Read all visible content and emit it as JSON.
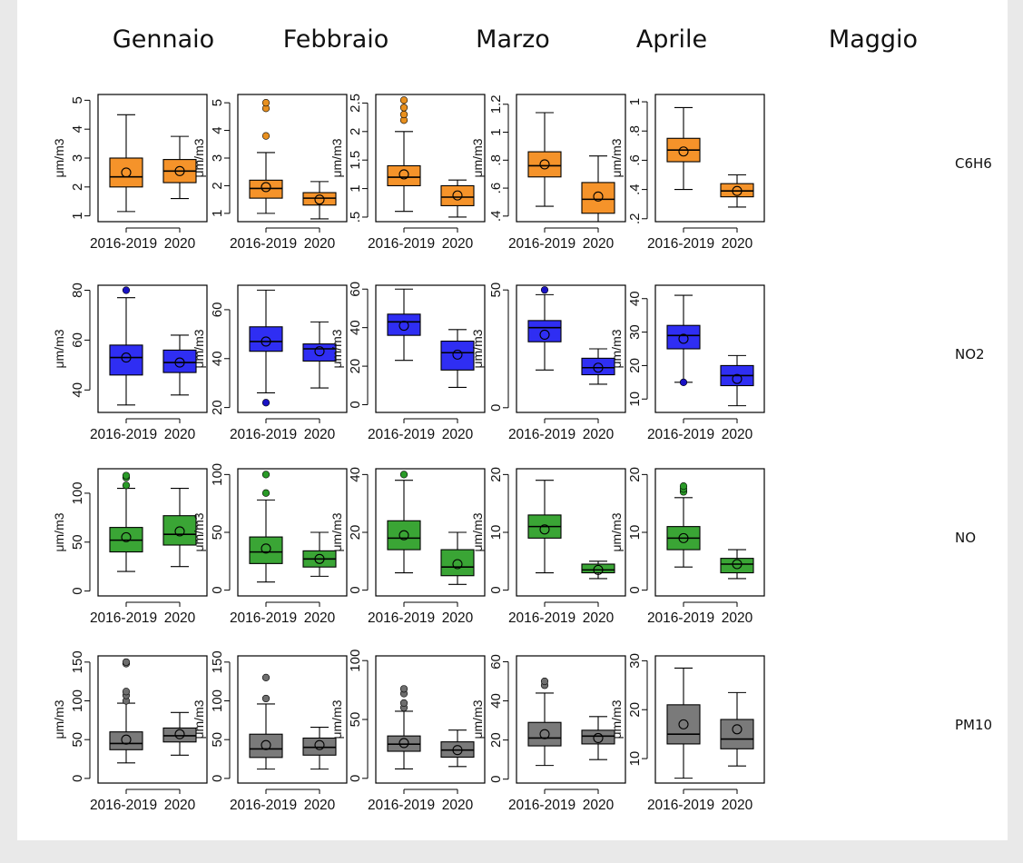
{
  "months": [
    "Gennaio",
    "Febbraio",
    "Marzo",
    "Aprile",
    "Maggio"
  ],
  "pollutants": [
    "C6H6",
    "NO2",
    "NO",
    "PM10"
  ],
  "colors": {
    "C6H6": "#f5932a",
    "NO2": "#2f2ef3",
    "NO": "#3aa535",
    "PM10": "#7a7a7a",
    "outlier_C6H6": "#e8901f",
    "outlier_NO2": "#1a12c4",
    "outlier_NO": "#2a9a28",
    "outlier_PM10": "#6e6e6e"
  },
  "chart_data": {
    "type": "boxplot",
    "categories": [
      "2016-2019",
      "2020"
    ],
    "ylabel": "μm/m3",
    "panels": [
      {
        "month": "Gennaio",
        "pollutant": "C6H6",
        "ylim": [
          0.8,
          5.2
        ],
        "yticks": [
          1,
          2,
          3,
          4,
          5
        ],
        "ytick_labels": [
          "1",
          "2",
          "3",
          "4",
          "5"
        ],
        "boxes": [
          {
            "min": 1.15,
            "q1": 2.0,
            "median": 2.35,
            "q3": 3.0,
            "max": 4.5,
            "mean": 2.5,
            "outliers": []
          },
          {
            "min": 1.6,
            "q1": 2.15,
            "median": 2.55,
            "q3": 2.95,
            "max": 3.75,
            "mean": 2.55,
            "outliers": []
          }
        ]
      },
      {
        "month": "Febbraio",
        "pollutant": "C6H6",
        "ylim": [
          0.7,
          5.3
        ],
        "yticks": [
          1,
          2,
          3,
          4,
          5
        ],
        "ytick_labels": [
          "1",
          "2",
          "3",
          "4",
          "5"
        ],
        "boxes": [
          {
            "min": 1.0,
            "q1": 1.55,
            "median": 1.9,
            "q3": 2.2,
            "max": 3.2,
            "mean": 1.95,
            "outliers": [
              3.8,
              4.8,
              5.0
            ]
          },
          {
            "min": 0.8,
            "q1": 1.3,
            "median": 1.55,
            "q3": 1.75,
            "max": 2.15,
            "mean": 1.5,
            "outliers": []
          }
        ]
      },
      {
        "month": "Marzo",
        "pollutant": "C6H6",
        "ylim": [
          0.42,
          2.65
        ],
        "yticks": [
          0.5,
          1,
          1.5,
          2,
          2.5
        ],
        "ytick_labels": [
          ".5",
          "1",
          "1.5",
          "2",
          "2.5"
        ],
        "boxes": [
          {
            "min": 0.6,
            "q1": 1.05,
            "median": 1.2,
            "q3": 1.4,
            "max": 2.0,
            "mean": 1.25,
            "outliers": [
              2.2,
              2.3,
              2.42,
              2.55
            ]
          },
          {
            "min": 0.5,
            "q1": 0.7,
            "median": 0.85,
            "q3": 1.05,
            "max": 1.15,
            "mean": 0.88,
            "outliers": []
          }
        ]
      },
      {
        "month": "Aprile",
        "pollutant": "C6H6",
        "ylim": [
          0.36,
          1.27
        ],
        "yticks": [
          0.4,
          0.6,
          0.8,
          1.0,
          1.2
        ],
        "ytick_labels": [
          ".4",
          ".6",
          ".8",
          "1",
          "1.2"
        ],
        "boxes": [
          {
            "min": 0.47,
            "q1": 0.68,
            "median": 0.76,
            "q3": 0.86,
            "max": 1.14,
            "mean": 0.77,
            "outliers": []
          },
          {
            "min": 0.36,
            "q1": 0.42,
            "median": 0.52,
            "q3": 0.64,
            "max": 0.83,
            "mean": 0.54,
            "outliers": []
          }
        ]
      },
      {
        "month": "Maggio",
        "pollutant": "C6H6",
        "ylim": [
          0.18,
          1.05
        ],
        "yticks": [
          0.2,
          0.4,
          0.6,
          0.8,
          1.0
        ],
        "ytick_labels": [
          ".2",
          ".4",
          ".6",
          ".8",
          "1"
        ],
        "boxes": [
          {
            "min": 0.4,
            "q1": 0.59,
            "median": 0.67,
            "q3": 0.75,
            "max": 0.96,
            "mean": 0.66,
            "outliers": []
          },
          {
            "min": 0.28,
            "q1": 0.35,
            "median": 0.39,
            "q3": 0.44,
            "max": 0.5,
            "mean": 0.39,
            "outliers": []
          }
        ]
      },
      {
        "month": "Gennaio",
        "pollutant": "NO2",
        "ylim": [
          31,
          82
        ],
        "yticks": [
          40,
          60,
          80
        ],
        "ytick_labels": [
          "40",
          "60",
          "80"
        ],
        "boxes": [
          {
            "min": 34,
            "q1": 46,
            "median": 53,
            "q3": 58,
            "max": 77,
            "mean": 53,
            "outliers": [
              80
            ]
          },
          {
            "min": 38,
            "q1": 47,
            "median": 51,
            "q3": 56,
            "max": 62,
            "mean": 51,
            "outliers": []
          }
        ]
      },
      {
        "month": "Febbraio",
        "pollutant": "NO2",
        "ylim": [
          18,
          70
        ],
        "yticks": [
          20,
          40,
          60
        ],
        "ytick_labels": [
          "20",
          "40",
          "60"
        ],
        "boxes": [
          {
            "min": 26,
            "q1": 43,
            "median": 47,
            "q3": 53,
            "max": 68,
            "mean": 47,
            "outliers": [
              22
            ]
          },
          {
            "min": 28,
            "q1": 39,
            "median": 44,
            "q3": 46,
            "max": 55,
            "mean": 43,
            "outliers": []
          }
        ]
      },
      {
        "month": "Marzo",
        "pollutant": "NO2",
        "ylim": [
          -4,
          62
        ],
        "yticks": [
          0,
          20,
          40,
          60
        ],
        "ytick_labels": [
          "0",
          "20",
          "40",
          "60"
        ],
        "boxes": [
          {
            "min": 23,
            "q1": 36,
            "median": 43,
            "q3": 47,
            "max": 60,
            "mean": 41,
            "outliers": []
          },
          {
            "min": 9,
            "q1": 18,
            "median": 27,
            "q3": 33,
            "max": 39,
            "mean": 26,
            "outliers": []
          }
        ]
      },
      {
        "month": "Aprile",
        "pollutant": "NO2",
        "ylim": [
          -2,
          52
        ],
        "yticks": [
          0,
          50
        ],
        "ytick_labels": [
          "0",
          "50"
        ],
        "boxes": [
          {
            "min": 16,
            "q1": 28,
            "median": 34,
            "q3": 37,
            "max": 48,
            "mean": 31,
            "outliers": [
              50
            ]
          },
          {
            "min": 10,
            "q1": 14,
            "median": 17,
            "q3": 21,
            "max": 25,
            "mean": 17,
            "outliers": []
          }
        ]
      },
      {
        "month": "Maggio",
        "pollutant": "NO2",
        "ylim": [
          6,
          44
        ],
        "yticks": [
          10,
          20,
          30,
          40
        ],
        "ytick_labels": [
          "10",
          "20",
          "30",
          "40"
        ],
        "boxes": [
          {
            "min": 15,
            "q1": 25,
            "median": 29,
            "q3": 32,
            "max": 41,
            "mean": 28,
            "outliers": [
              15
            ]
          },
          {
            "min": 8,
            "q1": 14,
            "median": 17,
            "q3": 20,
            "max": 23,
            "mean": 16,
            "outliers": []
          }
        ]
      },
      {
        "month": "Gennaio",
        "pollutant": "NO",
        "ylim": [
          -5,
          125
        ],
        "yticks": [
          0,
          50,
          100
        ],
        "ytick_labels": [
          "0",
          "50",
          "100"
        ],
        "boxes": [
          {
            "min": 20,
            "q1": 40,
            "median": 52,
            "q3": 65,
            "max": 105,
            "mean": 55,
            "outliers": [
              108,
              116,
              118
            ]
          },
          {
            "min": 25,
            "q1": 47,
            "median": 58,
            "q3": 77,
            "max": 105,
            "mean": 61,
            "outliers": []
          }
        ]
      },
      {
        "month": "Febbraio",
        "pollutant": "NO",
        "ylim": [
          -5,
          105
        ],
        "yticks": [
          0,
          50,
          100
        ],
        "ytick_labels": [
          "0",
          "50",
          "100"
        ],
        "boxes": [
          {
            "min": 7,
            "q1": 23,
            "median": 33,
            "q3": 46,
            "max": 78,
            "mean": 36,
            "outliers": [
              84,
              100
            ]
          },
          {
            "min": 12,
            "q1": 20,
            "median": 27,
            "q3": 34,
            "max": 50,
            "mean": 27,
            "outliers": []
          }
        ]
      },
      {
        "month": "Marzo",
        "pollutant": "NO",
        "ylim": [
          -2,
          42
        ],
        "yticks": [
          0,
          20,
          40
        ],
        "ytick_labels": [
          "0",
          "20",
          "40"
        ],
        "boxes": [
          {
            "min": 6,
            "q1": 14,
            "median": 18,
            "q3": 24,
            "max": 38,
            "mean": 19,
            "outliers": [
              40
            ]
          },
          {
            "min": 2,
            "q1": 5,
            "median": 8,
            "q3": 14,
            "max": 20,
            "mean": 9,
            "outliers": []
          }
        ]
      },
      {
        "month": "Aprile",
        "pollutant": "NO",
        "ylim": [
          -1,
          21
        ],
        "yticks": [
          0,
          10,
          20
        ],
        "ytick_labels": [
          "0",
          "10",
          "20"
        ],
        "boxes": [
          {
            "min": 3,
            "q1": 9,
            "median": 11,
            "q3": 13,
            "max": 19,
            "mean": 10.5,
            "outliers": []
          },
          {
            "min": 2,
            "q1": 3,
            "median": 3.5,
            "q3": 4.5,
            "max": 5,
            "mean": 3.5,
            "outliers": []
          }
        ]
      },
      {
        "month": "Maggio",
        "pollutant": "NO",
        "ylim": [
          -1,
          21
        ],
        "yticks": [
          0,
          10,
          20
        ],
        "ytick_labels": [
          "0",
          "10",
          "20"
        ],
        "boxes": [
          {
            "min": 4,
            "q1": 7,
            "median": 9,
            "q3": 11,
            "max": 16,
            "mean": 9,
            "outliers": [
              17,
              17.5,
              18
            ]
          },
          {
            "min": 2,
            "q1": 3,
            "median": 4.5,
            "q3": 5.5,
            "max": 7,
            "mean": 4.5,
            "outliers": []
          }
        ]
      },
      {
        "month": "Gennaio",
        "pollutant": "PM10",
        "ylim": [
          -6,
          158
        ],
        "yticks": [
          0,
          50,
          100,
          150
        ],
        "ytick_labels": [
          "0",
          "50",
          "100",
          "150"
        ],
        "boxes": [
          {
            "min": 20,
            "q1": 37,
            "median": 45,
            "q3": 60,
            "max": 97,
            "mean": 50,
            "outliers": [
              100,
              107,
              112,
              148,
              150
            ]
          },
          {
            "min": 30,
            "q1": 47,
            "median": 55,
            "q3": 65,
            "max": 85,
            "mean": 57,
            "outliers": []
          }
        ]
      },
      {
        "month": "Febbraio",
        "pollutant": "PM10",
        "ylim": [
          -6,
          158
        ],
        "yticks": [
          0,
          50,
          100,
          150
        ],
        "ytick_labels": [
          "0",
          "50",
          "100",
          "150"
        ],
        "boxes": [
          {
            "min": 12,
            "q1": 27,
            "median": 38,
            "q3": 57,
            "max": 96,
            "mean": 43,
            "outliers": [
              103,
              130
            ]
          },
          {
            "min": 12,
            "q1": 30,
            "median": 40,
            "q3": 52,
            "max": 66,
            "mean": 43,
            "outliers": []
          }
        ]
      },
      {
        "month": "Marzo",
        "pollutant": "PM10",
        "ylim": [
          -4,
          104
        ],
        "yticks": [
          0,
          50,
          100
        ],
        "ytick_labels": [
          "0",
          "50",
          "100"
        ],
        "boxes": [
          {
            "min": 8,
            "q1": 23,
            "median": 29,
            "q3": 36,
            "max": 57,
            "mean": 30,
            "outliers": [
              60,
              64,
              72,
              76
            ]
          },
          {
            "min": 10,
            "q1": 18,
            "median": 24,
            "q3": 31,
            "max": 41,
            "mean": 24,
            "outliers": []
          }
        ]
      },
      {
        "month": "Aprile",
        "pollutant": "PM10",
        "ylim": [
          -2,
          63
        ],
        "yticks": [
          0,
          20,
          40,
          60
        ],
        "ytick_labels": [
          "0",
          "20",
          "40",
          "60"
        ],
        "boxes": [
          {
            "min": 7,
            "q1": 17,
            "median": 21,
            "q3": 29,
            "max": 44,
            "mean": 23,
            "outliers": [
              48,
              50
            ]
          },
          {
            "min": 10,
            "q1": 18,
            "median": 22,
            "q3": 25,
            "max": 32,
            "mean": 21,
            "outliers": []
          }
        ]
      },
      {
        "month": "Maggio",
        "pollutant": "PM10",
        "ylim": [
          5,
          31
        ],
        "yticks": [
          10,
          20,
          30
        ],
        "ytick_labels": [
          "10",
          "20",
          "30"
        ],
        "boxes": [
          {
            "min": 6,
            "q1": 13,
            "median": 15,
            "q3": 21,
            "max": 28.5,
            "mean": 17,
            "outliers": []
          },
          {
            "min": 8.5,
            "q1": 12,
            "median": 14,
            "q3": 18,
            "max": 23.5,
            "mean": 16,
            "outliers": []
          }
        ]
      }
    ]
  }
}
